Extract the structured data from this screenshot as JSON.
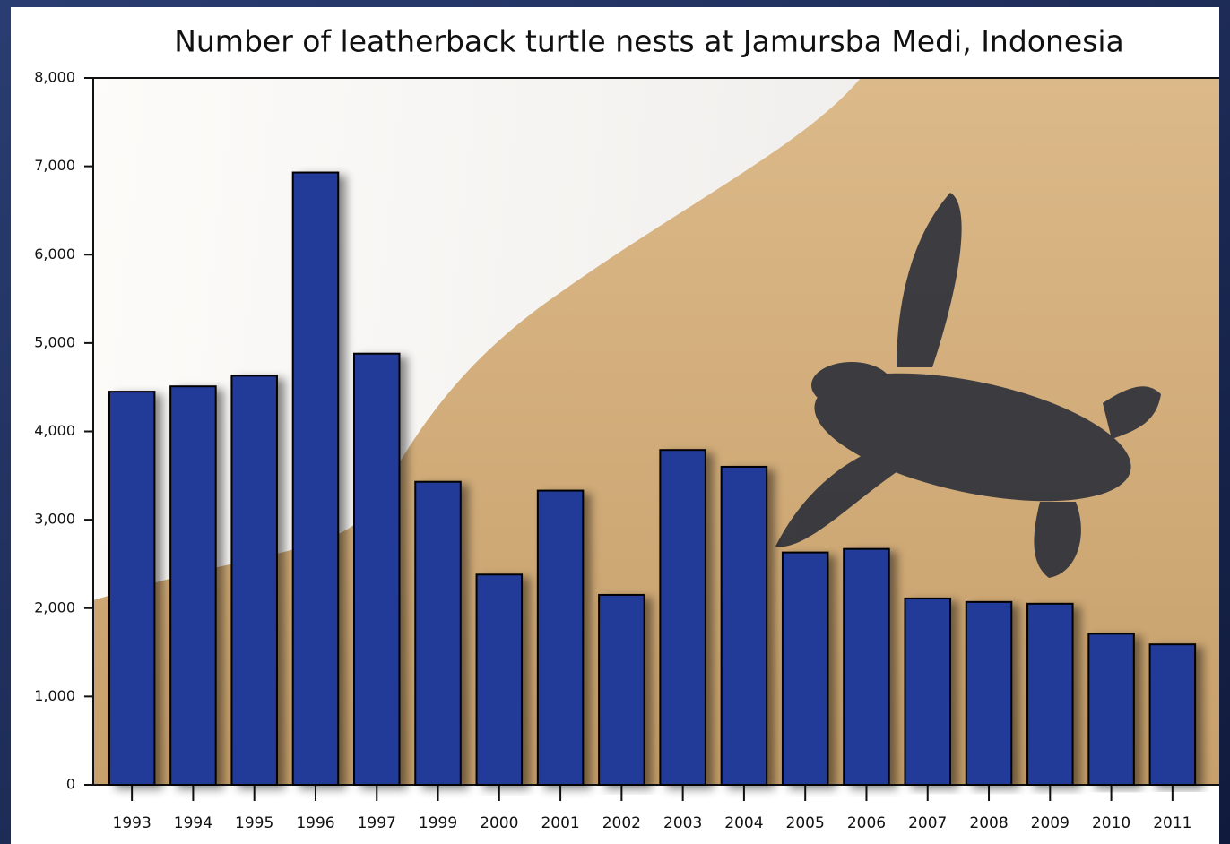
{
  "chart_data": {
    "type": "bar",
    "title": "Number of leatherback turtle nests at Jamursba Medi, Indonesia",
    "categories": [
      "1993",
      "1994",
      "1995",
      "1996",
      "1997",
      "1999",
      "2000",
      "2001",
      "2002",
      "2003",
      "2004",
      "2005",
      "2006",
      "2007",
      "2008",
      "2009",
      "2010",
      "2011"
    ],
    "values": [
      4450,
      4510,
      4630,
      6930,
      4880,
      3430,
      2380,
      3330,
      2150,
      3790,
      3600,
      2630,
      2670,
      2110,
      2070,
      2050,
      1710,
      1590
    ],
    "color": "#223a98",
    "ylim": [
      0,
      8000
    ],
    "yticks": [
      0,
      {
        "value": 1000,
        "label": "1,000"
      },
      {
        "value": 2000,
        "label": "2,000"
      },
      {
        "value": 3000,
        "label": "3,000"
      },
      {
        "value": 4000,
        "label": "4,000"
      },
      {
        "value": 5000,
        "label": "5,000"
      },
      {
        "value": 6000,
        "label": "6,000"
      },
      {
        "value": 7000,
        "label": "7,000"
      },
      {
        "value": 8000,
        "label": "8,000"
      }
    ],
    "grid": false
  }
}
